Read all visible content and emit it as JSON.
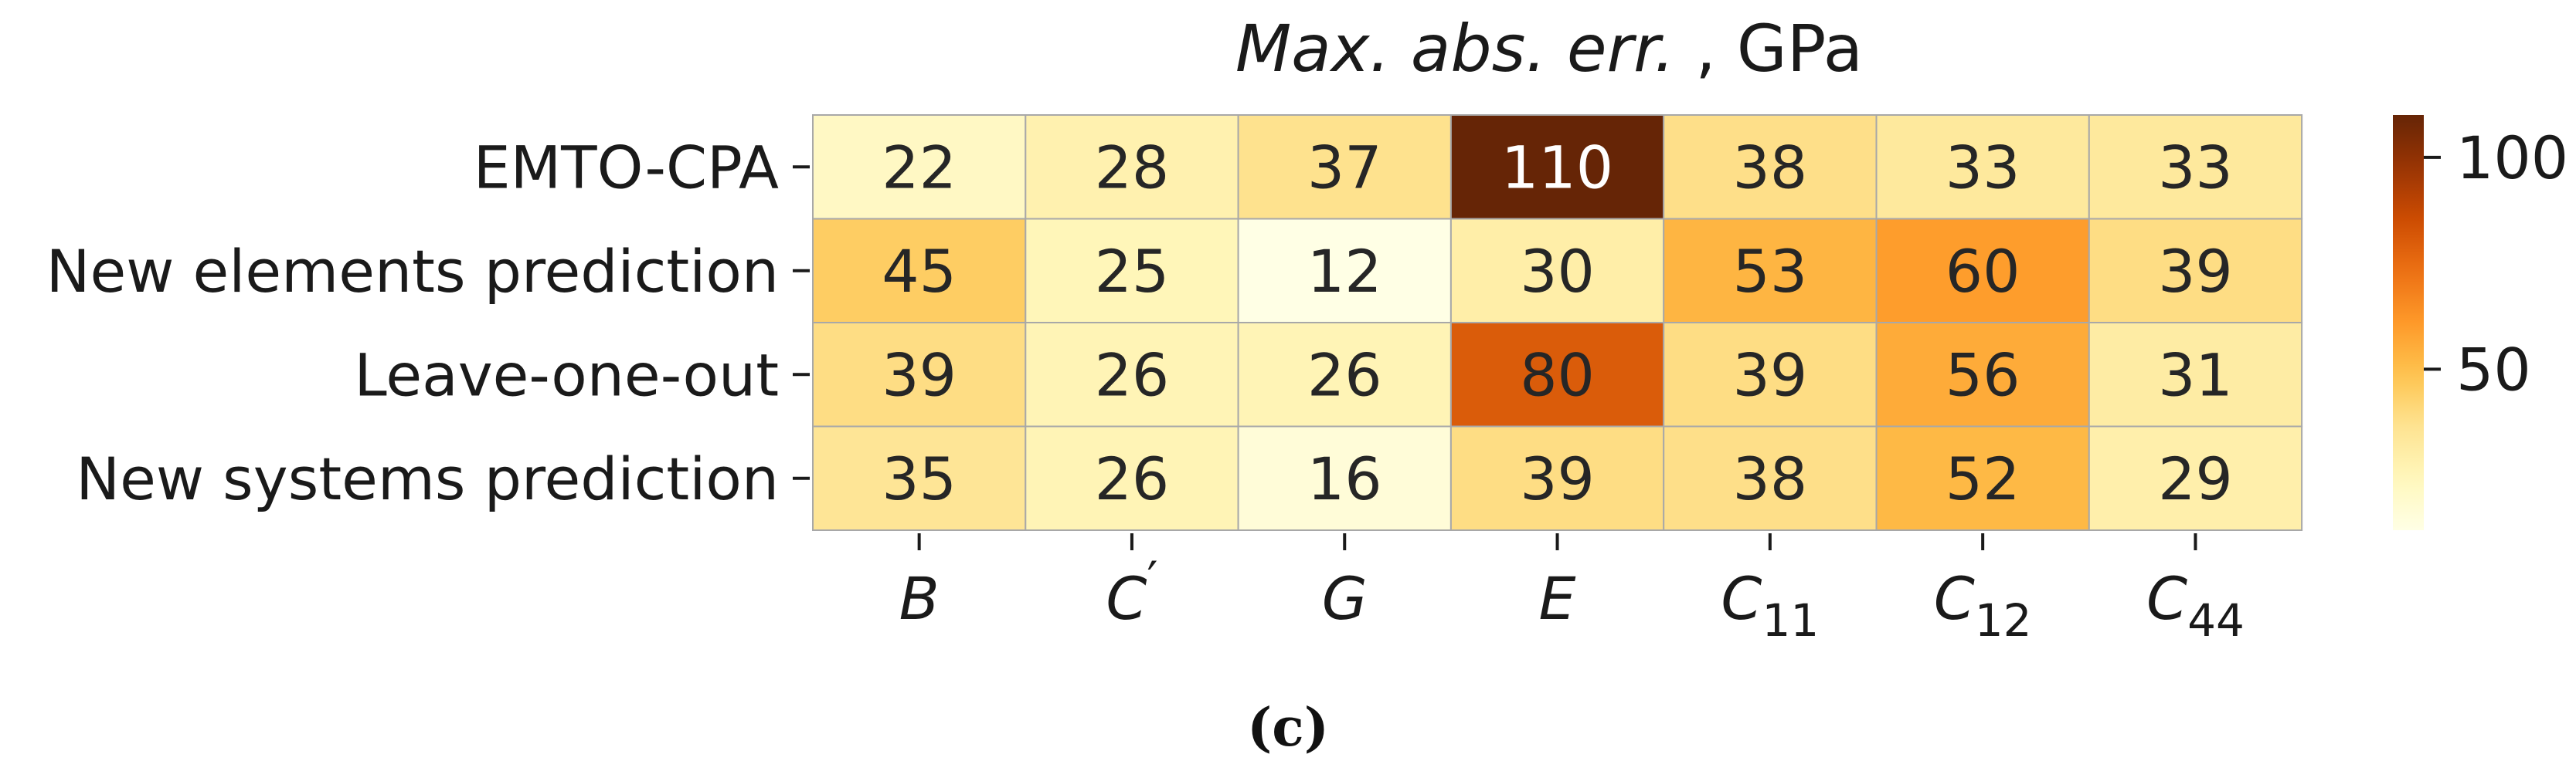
{
  "chart_data": {
    "type": "heatmap",
    "title": "Max. abs. err. , GPa",
    "rows": [
      "EMTO-CPA",
      "New elements prediction",
      "Leave-one-out",
      "New systems prediction"
    ],
    "columns": [
      {
        "base": "B",
        "sub": "",
        "sup": ""
      },
      {
        "base": "C",
        "sub": "",
        "sup": "′"
      },
      {
        "base": "G",
        "sub": "",
        "sup": ""
      },
      {
        "base": "E",
        "sub": "",
        "sup": ""
      },
      {
        "base": "C",
        "sub": "11",
        "sup": ""
      },
      {
        "base": "C",
        "sub": "12",
        "sup": ""
      },
      {
        "base": "C",
        "sub": "44",
        "sup": ""
      }
    ],
    "values": [
      [
        22,
        28,
        37,
        110,
        38,
        33,
        33
      ],
      [
        45,
        25,
        12,
        30,
        53,
        60,
        39
      ],
      [
        39,
        26,
        26,
        80,
        39,
        56,
        31
      ],
      [
        35,
        26,
        16,
        39,
        38,
        52,
        29
      ]
    ],
    "colorbar": {
      "min": 12,
      "max": 110,
      "ticks": [
        50,
        100
      ],
      "colormap": "YlOrBr"
    }
  },
  "caption": "(c)"
}
